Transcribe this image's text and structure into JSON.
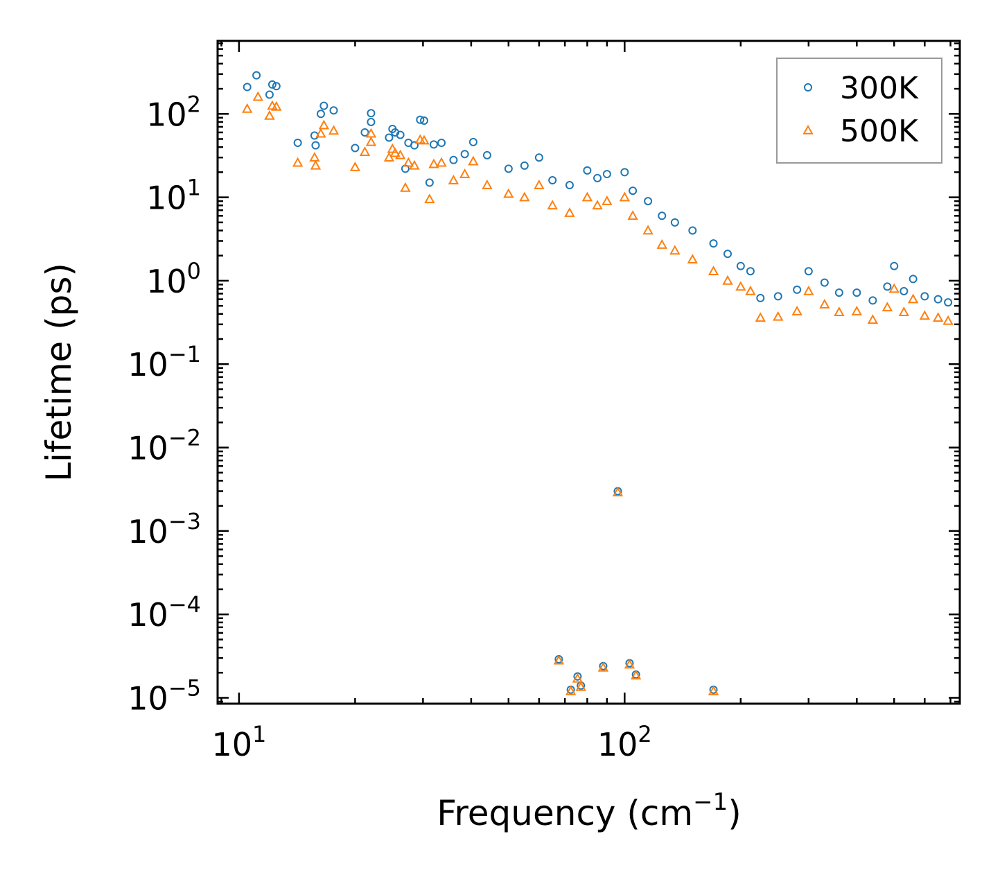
{
  "chart_data": {
    "type": "scatter",
    "title": "",
    "xlabel": "Frequency (cm",
    "xlabel_sup": "−1",
    "xlabel_suffix": ")",
    "ylabel": "Lifetime (ps)",
    "xscale": "log",
    "yscale": "log",
    "xlim": [
      8.8,
      740
    ],
    "ylim": [
      8.5e-06,
      750
    ],
    "legend_position": "top-right",
    "x_ticks": [
      {
        "value": 10,
        "base": "10",
        "exp": "1"
      },
      {
        "value": 100,
        "base": "10",
        "exp": "2"
      }
    ],
    "y_ticks": [
      {
        "value": 100,
        "base": "10",
        "exp": "2"
      },
      {
        "value": 10,
        "base": "10",
        "exp": "1"
      },
      {
        "value": 1,
        "base": "10",
        "exp": "0"
      },
      {
        "value": 0.1,
        "base": "10",
        "exp": "−1"
      },
      {
        "value": 0.01,
        "base": "10",
        "exp": "−2"
      },
      {
        "value": 0.001,
        "base": "10",
        "exp": "−3"
      },
      {
        "value": 0.0001,
        "base": "10",
        "exp": "−4"
      },
      {
        "value": 1e-05,
        "base": "10",
        "exp": "−5"
      }
    ],
    "series": [
      {
        "name": "300K",
        "marker": "circle",
        "color": "#1f77b4",
        "points": [
          [
            10.5,
            210
          ],
          [
            11.1,
            290
          ],
          [
            12.0,
            170
          ],
          [
            12.2,
            225
          ],
          [
            12.5,
            215
          ],
          [
            14.2,
            45
          ],
          [
            15.7,
            55
          ],
          [
            15.8,
            42
          ],
          [
            16.3,
            100
          ],
          [
            16.6,
            125
          ],
          [
            17.6,
            110
          ],
          [
            20.0,
            39
          ],
          [
            21.2,
            60
          ],
          [
            22.0,
            80
          ],
          [
            22.0,
            102
          ],
          [
            24.5,
            52
          ],
          [
            25.0,
            66
          ],
          [
            25.4,
            60
          ],
          [
            26.2,
            56
          ],
          [
            27.0,
            22
          ],
          [
            27.5,
            45
          ],
          [
            28.5,
            42
          ],
          [
            29.5,
            85
          ],
          [
            30.2,
            83
          ],
          [
            31.2,
            15
          ],
          [
            32.0,
            43
          ],
          [
            33.5,
            45
          ],
          [
            36.0,
            28
          ],
          [
            38.5,
            33
          ],
          [
            40.5,
            46
          ],
          [
            44.0,
            32
          ],
          [
            50.0,
            22
          ],
          [
            55.0,
            24
          ],
          [
            60.0,
            30
          ],
          [
            65.0,
            16
          ],
          [
            72.0,
            14
          ],
          [
            80.0,
            21
          ],
          [
            85.0,
            17
          ],
          [
            90.0,
            19
          ],
          [
            100.0,
            20
          ],
          [
            105.0,
            12
          ],
          [
            115.0,
            9
          ],
          [
            125.0,
            6
          ],
          [
            135.0,
            5
          ],
          [
            150.0,
            4
          ],
          [
            170.0,
            2.8
          ],
          [
            185.0,
            2.1
          ],
          [
            200.0,
            1.5
          ],
          [
            212.0,
            1.3
          ],
          [
            225.0,
            0.62
          ],
          [
            250.0,
            0.65
          ],
          [
            280.0,
            0.78
          ],
          [
            300.0,
            1.3
          ],
          [
            330.0,
            0.95
          ],
          [
            360.0,
            0.72
          ],
          [
            400.0,
            0.72
          ],
          [
            440.0,
            0.58
          ],
          [
            480.0,
            0.85
          ],
          [
            500.0,
            1.5
          ],
          [
            530.0,
            0.75
          ],
          [
            560.0,
            1.05
          ],
          [
            600.0,
            0.65
          ],
          [
            650.0,
            0.6
          ],
          [
            690.0,
            0.55
          ],
          [
            96.0,
            0.003
          ],
          [
            67.5,
            2.9e-05
          ],
          [
            72.5,
            1.25e-05
          ],
          [
            75.5,
            1.8e-05
          ],
          [
            77.0,
            1.4e-05
          ],
          [
            88.0,
            2.4e-05
          ],
          [
            103.0,
            2.6e-05
          ],
          [
            107.0,
            1.9e-05
          ],
          [
            170.0,
            1.25e-05
          ]
        ]
      },
      {
        "name": "500K",
        "marker": "triangle",
        "color": "#ff7f0e",
        "points": [
          [
            10.5,
            115
          ],
          [
            11.2,
            160
          ],
          [
            12.0,
            95
          ],
          [
            12.2,
            125
          ],
          [
            12.5,
            122
          ],
          [
            14.2,
            26
          ],
          [
            15.7,
            30
          ],
          [
            15.8,
            24
          ],
          [
            16.3,
            58
          ],
          [
            16.6,
            73
          ],
          [
            17.6,
            63
          ],
          [
            20.0,
            23
          ],
          [
            21.2,
            35
          ],
          [
            22.0,
            46
          ],
          [
            22.0,
            58
          ],
          [
            24.5,
            30
          ],
          [
            25.0,
            38
          ],
          [
            25.4,
            34
          ],
          [
            26.2,
            32
          ],
          [
            27.0,
            13
          ],
          [
            27.5,
            26
          ],
          [
            28.5,
            24
          ],
          [
            29.5,
            49
          ],
          [
            30.2,
            48
          ],
          [
            31.2,
            9.5
          ],
          [
            32.0,
            25
          ],
          [
            33.5,
            26
          ],
          [
            36.0,
            16
          ],
          [
            38.5,
            19
          ],
          [
            40.5,
            27
          ],
          [
            44.0,
            14
          ],
          [
            50.0,
            11
          ],
          [
            55.0,
            10
          ],
          [
            60.0,
            14
          ],
          [
            65.0,
            8
          ],
          [
            72.0,
            6.5
          ],
          [
            80.0,
            10
          ],
          [
            85.0,
            8
          ],
          [
            90.0,
            9
          ],
          [
            100.0,
            10
          ],
          [
            105.0,
            6
          ],
          [
            115.0,
            4
          ],
          [
            125.0,
            2.7
          ],
          [
            135.0,
            2.3
          ],
          [
            150.0,
            1.8
          ],
          [
            170.0,
            1.3
          ],
          [
            185.0,
            1.0
          ],
          [
            200.0,
            0.85
          ],
          [
            212.0,
            0.75
          ],
          [
            225.0,
            0.36
          ],
          [
            250.0,
            0.37
          ],
          [
            280.0,
            0.43
          ],
          [
            300.0,
            0.75
          ],
          [
            330.0,
            0.52
          ],
          [
            360.0,
            0.42
          ],
          [
            400.0,
            0.43
          ],
          [
            440.0,
            0.34
          ],
          [
            480.0,
            0.48
          ],
          [
            500.0,
            0.8
          ],
          [
            530.0,
            0.42
          ],
          [
            560.0,
            0.6
          ],
          [
            600.0,
            0.38
          ],
          [
            650.0,
            0.36
          ],
          [
            690.0,
            0.33
          ],
          [
            96.0,
            0.0029
          ],
          [
            67.5,
            2.8e-05
          ],
          [
            72.5,
            1.2e-05
          ],
          [
            75.5,
            1.7e-05
          ],
          [
            77.0,
            1.35e-05
          ],
          [
            88.0,
            2.3e-05
          ],
          [
            103.0,
            2.5e-05
          ],
          [
            107.0,
            1.85e-05
          ],
          [
            170.0,
            1.2e-05
          ]
        ]
      }
    ]
  }
}
